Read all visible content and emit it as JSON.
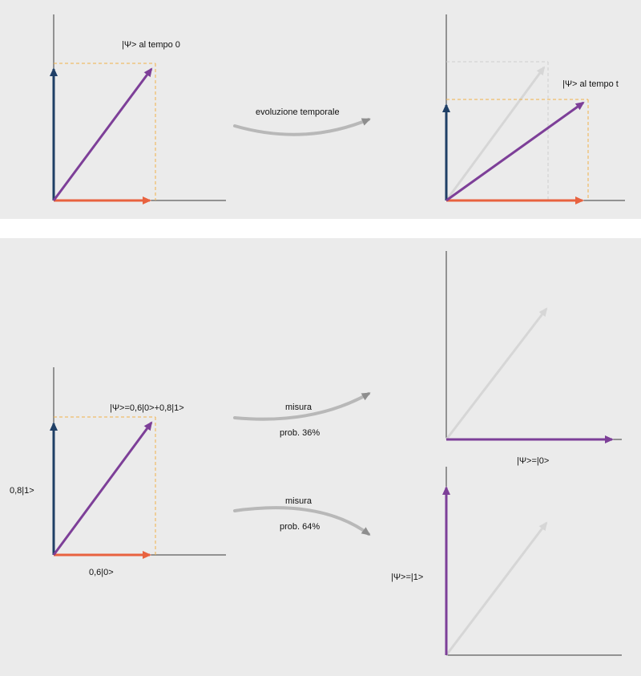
{
  "colors": {
    "panel_bg": "#ebebeb",
    "gap_bg": "#ffffff",
    "axis": "#3a3a3a",
    "ket1_blue": "#1f3f66",
    "ket0_orange": "#e8623f",
    "state_purple": "#7d3f98",
    "ghost_gray": "#d6d6d6",
    "guide_orange": "#f2b24a",
    "guide_gray": "#cfcfcf",
    "flow_arrow": "#9a9a9a"
  },
  "top": {
    "state_t0_label": "|Ψ> al tempo 0",
    "evolution_label": "evoluzione temporale",
    "state_t_label": "|Ψ> al tempo t"
  },
  "bottom": {
    "superposition_label": "|Ψ>=0,6|0>+0,8|1>",
    "component_1_label": "0,8|1>",
    "component_0_label": "0,6|0>",
    "measure_upper_label": "misura",
    "prob_upper_label": "prob. 36%",
    "measure_lower_label": "misura",
    "prob_lower_label": "prob. 64%",
    "result_0_label": "|Ψ>=|0>",
    "result_1_label": "|Ψ>=|1>"
  },
  "icons": [
    "arrow-head-icon"
  ]
}
